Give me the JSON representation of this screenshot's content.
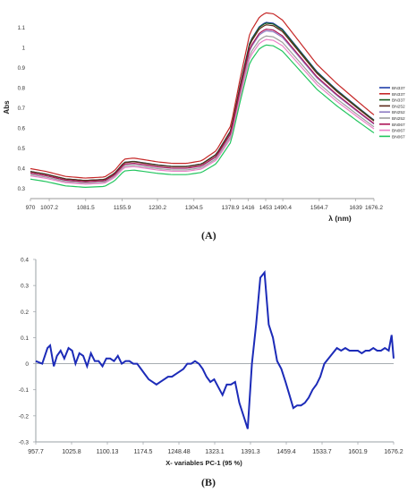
{
  "panel_labels": {
    "a": "(A)",
    "b": "(B)"
  },
  "chart_data": [
    {
      "type": "line",
      "ylabel": "Abs",
      "xlabel": "λ (nm)",
      "y_ticks": [
        "0.3",
        "0.4",
        "0.5",
        "0.6",
        "0.7",
        "0.8",
        "0.9",
        "1",
        "1.1"
      ],
      "x_tick_labels": [
        "970",
        "1007.2",
        "1081.5",
        "1155.9",
        "1230.2",
        "1304.5",
        "1378.9",
        "1416",
        "1453",
        "1490.4",
        "1564.7",
        "1639",
        "1676.2"
      ],
      "x_ticks_nm": [
        970,
        1007.2,
        1081.5,
        1155.9,
        1230.2,
        1304.5,
        1378.9,
        1416,
        1453,
        1490.4,
        1564.7,
        1639,
        1676.2
      ],
      "xlim": [
        970,
        1676.2
      ],
      "ylim": [
        0.25,
        1.2
      ],
      "legend_position": "right",
      "legend_labels": [
        "BN337",
        "BN337",
        "BN337",
        "BN252",
        "BN252",
        "BN252",
        "BN067",
        "BN067",
        "BN067"
      ],
      "base_x": [
        970,
        1000,
        1040,
        1080,
        1120,
        1140,
        1160,
        1180,
        1200,
        1230,
        1260,
        1290,
        1320,
        1350,
        1380,
        1400,
        1420,
        1440,
        1453,
        1470,
        1490,
        1520,
        1560,
        1600,
        1640,
        1676
      ],
      "base_y": [
        0.385,
        0.372,
        0.348,
        0.34,
        0.345,
        0.375,
        0.43,
        0.435,
        0.428,
        0.417,
        0.41,
        0.41,
        0.422,
        0.47,
        0.59,
        0.82,
        1.03,
        1.105,
        1.125,
        1.12,
        1.09,
        1.0,
        0.88,
        0.79,
        0.71,
        0.64
      ],
      "series": [
        {
          "color": "#1f3fa8",
          "offset": 0.0,
          "scale": 1.0
        },
        {
          "color": "#c62828",
          "offset": 0.01,
          "scale": 1.045
        },
        {
          "color": "#1b5e20",
          "offset": 0.0,
          "scale": 0.995
        },
        {
          "color": "#5d2a1a",
          "offset": 0.0,
          "scale": 0.985
        },
        {
          "color": "#8e7cc3",
          "offset": -0.005,
          "scale": 0.955
        },
        {
          "color": "#9e9e9e",
          "offset": -0.01,
          "scale": 0.93
        },
        {
          "color": "#ad1457",
          "offset": -0.005,
          "scale": 0.965
        },
        {
          "color": "#ea80c8",
          "offset": -0.015,
          "scale": 0.915
        },
        {
          "color": "#22c55e",
          "offset": -0.03,
          "scale": 0.9
        }
      ]
    },
    {
      "type": "line",
      "xlabel": "X- variables PC-1 (95 %)",
      "y_ticks": [
        "0.4",
        "0.3",
        "0.2",
        "0.1",
        "0",
        "-0.1",
        "-0.2",
        "-0.3"
      ],
      "y_tick_values": [
        0.4,
        0.3,
        0.2,
        0.1,
        0,
        -0.1,
        -0.2,
        -0.3
      ],
      "x_tick_labels": [
        "957.7",
        "1025.8",
        "1100.13",
        "1174.5",
        "1248.48",
        "1323.1",
        "1391.3",
        "1459.4",
        "1533.7",
        "1601.9",
        "1676.2"
      ],
      "x_ticks_nm": [
        957.7,
        1025.8,
        1100.13,
        1174.5,
        1248.48,
        1323.1,
        1391.3,
        1459.4,
        1533.7,
        1601.9,
        1676.2
      ],
      "xlim": [
        957.7,
        1676.2
      ],
      "ylim": [
        -0.3,
        0.4
      ],
      "color": "#1c2bb8",
      "x": [
        957.7,
        970,
        980,
        985,
        992,
        998,
        1005,
        1012,
        1020,
        1027,
        1034,
        1042,
        1050,
        1058,
        1066,
        1074,
        1082,
        1090,
        1098,
        1106,
        1114,
        1122,
        1130,
        1138,
        1146,
        1154,
        1162,
        1170,
        1178,
        1186,
        1194,
        1202,
        1210,
        1218,
        1226,
        1234,
        1242,
        1250,
        1258,
        1266,
        1274,
        1282,
        1290,
        1298,
        1306,
        1314,
        1322,
        1330,
        1338,
        1346,
        1354,
        1362,
        1370,
        1378,
        1386,
        1394,
        1402,
        1410,
        1418,
        1426,
        1434,
        1442,
        1450,
        1458,
        1466,
        1474,
        1482,
        1490,
        1498,
        1506,
        1514,
        1522,
        1530,
        1538,
        1546,
        1554,
        1562,
        1570,
        1578,
        1586,
        1594,
        1602,
        1610,
        1618,
        1626,
        1634,
        1642,
        1650,
        1658,
        1666,
        1672,
        1676.2
      ],
      "y": [
        0.01,
        0.0,
        0.06,
        0.07,
        -0.01,
        0.03,
        0.05,
        0.02,
        0.06,
        0.05,
        0.0,
        0.04,
        0.03,
        -0.01,
        0.04,
        0.01,
        0.01,
        -0.01,
        0.02,
        0.02,
        0.01,
        0.03,
        0.0,
        0.01,
        0.01,
        0.0,
        0.0,
        -0.02,
        -0.04,
        -0.06,
        -0.07,
        -0.08,
        -0.07,
        -0.06,
        -0.05,
        -0.05,
        -0.04,
        -0.03,
        -0.02,
        0.0,
        0.0,
        0.01,
        0.0,
        -0.02,
        -0.05,
        -0.07,
        -0.06,
        -0.09,
        -0.12,
        -0.08,
        -0.08,
        -0.07,
        -0.15,
        -0.2,
        -0.25,
        0.0,
        0.15,
        0.33,
        0.35,
        0.15,
        0.1,
        0.01,
        -0.02,
        -0.07,
        -0.12,
        -0.17,
        -0.16,
        -0.16,
        -0.15,
        -0.13,
        -0.1,
        -0.08,
        -0.05,
        0.0,
        0.02,
        0.04,
        0.06,
        0.05,
        0.06,
        0.05,
        0.05,
        0.05,
        0.04,
        0.05,
        0.05,
        0.06,
        0.05,
        0.05,
        0.06,
        0.05,
        0.11,
        0.02
      ]
    }
  ]
}
